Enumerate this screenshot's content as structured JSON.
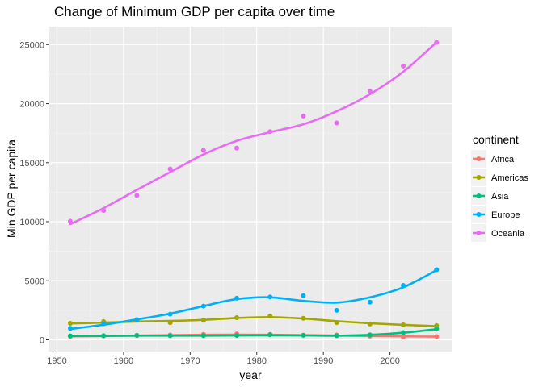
{
  "chart_data": {
    "type": "scatter",
    "title": "Change of Minimum GDP per capita over time",
    "xlabel": "year",
    "ylabel": "Min GDP per capita",
    "xlim": [
      1950,
      2010
    ],
    "ylim": [
      0,
      26000
    ],
    "xticks": [
      1950,
      1960,
      1970,
      1980,
      1990,
      2000
    ],
    "yticks": [
      0,
      5000,
      10000,
      15000,
      20000,
      25000
    ],
    "x_tick_labels": [
      "1950",
      "1960",
      "1970",
      "1980",
      "1990",
      "2000"
    ],
    "y_tick_labels": [
      "0",
      "5000",
      "10000",
      "15000",
      "20000",
      "25000"
    ],
    "grid": true,
    "legend_title": "continent",
    "legend_position": "right",
    "background": "#ebebeb",
    "x": [
      1952,
      1957,
      1962,
      1967,
      1972,
      1977,
      1982,
      1987,
      1992,
      1997,
      2002,
      2007
    ],
    "series": [
      {
        "name": "Africa",
        "color": "#f8766d",
        "values": [
          299,
          336,
          355,
          412,
          464,
          502,
          462,
          389,
          411,
          312,
          241,
          278
        ],
        "smooth": [
          300,
          320,
          360,
          400,
          430,
          440,
          430,
          400,
          360,
          320,
          290,
          270
        ]
      },
      {
        "name": "Americas",
        "color": "#a3a500",
        "values": [
          1398,
          1544,
          1662,
          1452,
          1654,
          1874,
          2011,
          1823,
          1456,
          1342,
          1270,
          1202
        ],
        "smooth": [
          1390,
          1460,
          1550,
          1600,
          1690,
          1850,
          1920,
          1800,
          1580,
          1400,
          1270,
          1160
        ]
      },
      {
        "name": "Asia",
        "color": "#00bf7d",
        "values": [
          331,
          350,
          388,
          349,
          357,
          371,
          424,
          385,
          347,
          415,
          611,
          944
        ],
        "smooth": [
          320,
          340,
          350,
          350,
          350,
          370,
          380,
          370,
          350,
          420,
          600,
          900
        ]
      },
      {
        "name": "Europe",
        "color": "#00b0f6",
        "values": [
          973,
          1354,
          1710,
          2172,
          2860,
          3528,
          3631,
          3739,
          2497,
          3193,
          4604,
          5937
        ],
        "smooth": [
          920,
          1280,
          1730,
          2220,
          2860,
          3450,
          3600,
          3300,
          3150,
          3600,
          4450,
          5900
        ]
      },
      {
        "name": "Oceania",
        "color": "#e76bf3",
        "values": [
          10040,
          10950,
          12218,
          14464,
          16046,
          16234,
          17634,
          18943,
          18363,
          21050,
          23189,
          25185
        ],
        "smooth": [
          9800,
          11150,
          12700,
          14200,
          15700,
          16850,
          17580,
          18250,
          19350,
          20800,
          22700,
          25200
        ]
      }
    ]
  }
}
